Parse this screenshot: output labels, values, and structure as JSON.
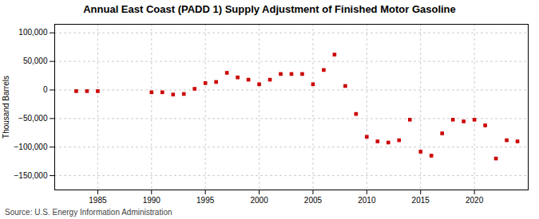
{
  "chart_data": {
    "type": "scatter",
    "title": "Annual East Coast (PADD 1) Supply Adjustment of Finished Motor Gasoline",
    "ylabel": "Thousand Barrels",
    "source": "Source: U.S. Energy Information Administration",
    "color": "#cc0000",
    "marker": "square",
    "grid": true,
    "xlim": [
      1981,
      2025
    ],
    "ylim": [
      -175000,
      115000
    ],
    "xticks": [
      1985,
      1990,
      1995,
      2000,
      2005,
      2010,
      2015,
      2020
    ],
    "yticks": [
      {
        "value": -150000,
        "label": "−150,000"
      },
      {
        "value": -100000,
        "label": "−100,000"
      },
      {
        "value": -50000,
        "label": "−50,000"
      },
      0,
      {
        "value": 50000,
        "label": "50,000"
      },
      {
        "value": 100000,
        "label": "100,000"
      }
    ],
    "x": [
      1983,
      1984,
      1985,
      1990,
      1991,
      1992,
      1993,
      1994,
      1995,
      1996,
      1997,
      1998,
      1999,
      2000,
      2001,
      2002,
      2003,
      2004,
      2005,
      2006,
      2007,
      2008,
      2009,
      2010,
      2011,
      2012,
      2013,
      2014,
      2015,
      2016,
      2017,
      2018,
      2019,
      2020,
      2021,
      2022,
      2023,
      2024
    ],
    "values": [
      -2000,
      -2000,
      -2000,
      -4000,
      -4000,
      -8000,
      -7000,
      2000,
      12000,
      14000,
      30000,
      22000,
      18000,
      10000,
      18000,
      28000,
      28000,
      28000,
      10000,
      35000,
      62000,
      7000,
      -42000,
      -82000,
      -90000,
      -92000,
      -88000,
      -52000,
      -108000,
      -115000,
      -76000,
      -52000,
      -55000,
      -52000,
      -62000,
      -120000,
      -88000,
      -90000
    ]
  }
}
